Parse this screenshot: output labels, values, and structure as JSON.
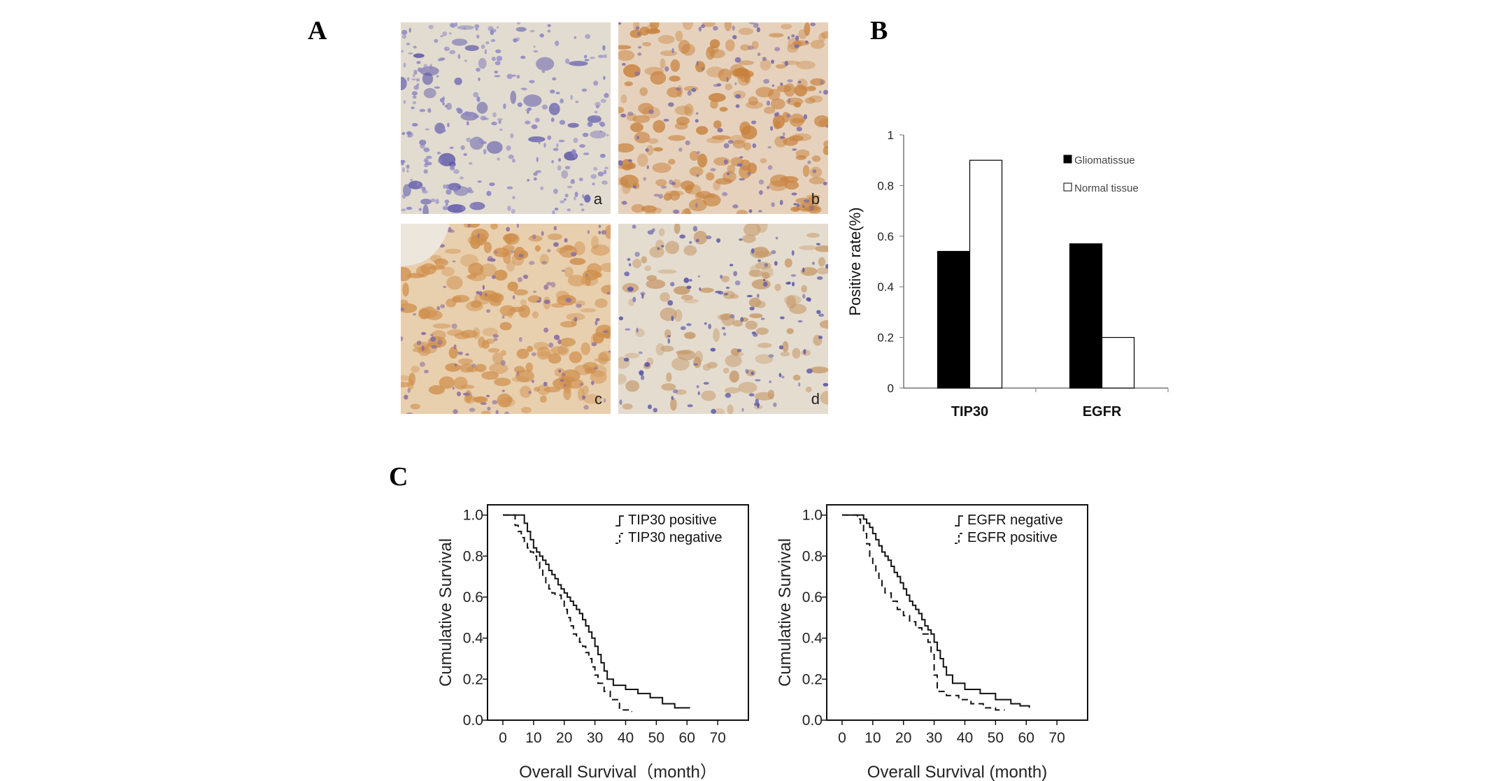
{
  "panels": {
    "a": "A",
    "b": "B",
    "c": "C"
  },
  "micrographs": [
    {
      "label": "a",
      "stain": "negative",
      "colors": [
        "#e2dcd0",
        "#5a55a8",
        "#8c86c4"
      ]
    },
    {
      "label": "b",
      "stain": "strong",
      "colors": [
        "#e6d2bc",
        "#c8823e",
        "#7a6aa8"
      ]
    },
    {
      "label": "c",
      "stain": "strong",
      "colors": [
        "#e8cfae",
        "#cf8f4c",
        "#8a6ea0"
      ]
    },
    {
      "label": "d",
      "stain": "weak",
      "colors": [
        "#e4dccf",
        "#c69a6a",
        "#5c58a6"
      ]
    }
  ],
  "chart_data": [
    {
      "type": "bar",
      "ylabel": "Positive rate(%)",
      "categories": [
        "TIP30",
        "EGFR"
      ],
      "ylim": [
        0,
        1
      ],
      "yticks": [
        "0",
        "0.2",
        "0.4",
        "0.6",
        "0.8",
        "1"
      ],
      "series": [
        {
          "name": "Gliomatissue",
          "color": "#000000",
          "values": [
            0.54,
            0.57
          ]
        },
        {
          "name": "Normal tissue",
          "color": "#ffffff",
          "values": [
            0.9,
            0.2
          ]
        }
      ],
      "legend": "top-right"
    },
    {
      "type": "line",
      "xlabel": "Overall Survival（month）",
      "ylabel": "Cumulative Survival",
      "xlim": [
        -5,
        80
      ],
      "ylim": [
        0,
        1.05
      ],
      "xticks": [
        "0",
        "10",
        "20",
        "30",
        "40",
        "50",
        "60",
        "70"
      ],
      "yticks": [
        "0.0",
        "0.2",
        "0.4",
        "0.6",
        "0.8",
        "1.0"
      ],
      "legend": "top-right",
      "series": [
        {
          "name": "TIP30 positive",
          "style": "solid",
          "x": [
            0,
            5,
            7,
            8,
            9,
            10,
            11,
            12,
            13,
            14,
            15,
            16,
            17,
            18,
            19,
            20,
            21,
            22,
            23,
            24,
            25,
            26,
            27,
            28,
            29,
            30,
            31,
            32,
            33,
            34,
            36,
            40,
            44,
            48,
            52,
            56,
            61
          ],
          "y": [
            1.0,
            1.0,
            0.96,
            0.92,
            0.88,
            0.84,
            0.82,
            0.8,
            0.78,
            0.76,
            0.73,
            0.71,
            0.69,
            0.66,
            0.64,
            0.62,
            0.6,
            0.58,
            0.56,
            0.54,
            0.52,
            0.49,
            0.46,
            0.43,
            0.4,
            0.36,
            0.32,
            0.28,
            0.24,
            0.2,
            0.17,
            0.15,
            0.13,
            0.11,
            0.08,
            0.06,
            0.06
          ]
        },
        {
          "name": "TIP30 negative",
          "style": "dashed",
          "x": [
            0,
            4,
            5,
            6,
            7,
            8,
            9,
            10,
            11,
            12,
            13,
            14,
            15,
            16,
            17,
            19,
            20,
            21,
            22,
            23,
            24,
            25,
            26,
            27,
            28,
            29,
            30,
            31,
            33,
            35,
            38,
            42
          ],
          "y": [
            1.0,
            0.95,
            0.92,
            0.89,
            0.87,
            0.84,
            0.82,
            0.8,
            0.77,
            0.74,
            0.7,
            0.66,
            0.64,
            0.62,
            0.61,
            0.58,
            0.54,
            0.5,
            0.46,
            0.42,
            0.4,
            0.38,
            0.36,
            0.33,
            0.3,
            0.26,
            0.22,
            0.18,
            0.14,
            0.1,
            0.05,
            0.04
          ]
        }
      ]
    },
    {
      "type": "line",
      "xlabel": "Overall Survival (month)",
      "ylabel": "Cumulative Survival",
      "xlim": [
        -5,
        80
      ],
      "ylim": [
        0,
        1.05
      ],
      "xticks": [
        "0",
        "10",
        "20",
        "30",
        "40",
        "50",
        "60",
        "70"
      ],
      "yticks": [
        "0.0",
        "0.2",
        "0.4",
        "0.6",
        "0.8",
        "1.0"
      ],
      "legend": "top-right",
      "series": [
        {
          "name": "EGFR negative",
          "style": "solid",
          "x": [
            0,
            5,
            7,
            8,
            9,
            10,
            11,
            12,
            13,
            14,
            15,
            16,
            17,
            18,
            19,
            20,
            21,
            22,
            23,
            24,
            25,
            26,
            27,
            28,
            29,
            30,
            31,
            32,
            33,
            34,
            36,
            40,
            45,
            50,
            55,
            58,
            61
          ],
          "y": [
            1.0,
            1.0,
            0.98,
            0.96,
            0.94,
            0.91,
            0.88,
            0.85,
            0.82,
            0.8,
            0.78,
            0.75,
            0.72,
            0.7,
            0.67,
            0.64,
            0.61,
            0.58,
            0.56,
            0.54,
            0.52,
            0.49,
            0.46,
            0.44,
            0.42,
            0.38,
            0.34,
            0.3,
            0.26,
            0.22,
            0.18,
            0.15,
            0.13,
            0.1,
            0.08,
            0.07,
            0.06
          ]
        },
        {
          "name": "EGFR positive",
          "style": "dashed",
          "x": [
            0,
            5,
            6,
            7,
            8,
            9,
            10,
            11,
            12,
            13,
            14,
            16,
            18,
            20,
            22,
            24,
            26,
            28,
            29,
            30,
            31,
            34,
            38,
            42,
            46,
            50,
            53
          ],
          "y": [
            1.0,
            0.98,
            0.95,
            0.91,
            0.86,
            0.8,
            0.76,
            0.72,
            0.68,
            0.65,
            0.62,
            0.58,
            0.54,
            0.51,
            0.48,
            0.45,
            0.42,
            0.38,
            0.32,
            0.22,
            0.14,
            0.12,
            0.1,
            0.08,
            0.06,
            0.05,
            0.05
          ]
        }
      ]
    }
  ]
}
